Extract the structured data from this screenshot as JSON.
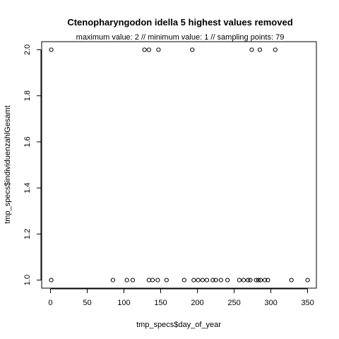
{
  "chart_data": {
    "type": "scatter",
    "title": "Ctenopharyngodon idella  5 highest values removed",
    "subtitle": "maximum value: 2  //  minimum value: 1  // sampling points: 79",
    "xlabel": "tmp_specs$day_of_year",
    "ylabel": "tmp_specs$individuenzahlGesamt",
    "xlim": [
      -12,
      362
    ],
    "ylim": [
      0.965,
      2.035
    ],
    "x_ticks": [
      0,
      50,
      100,
      150,
      200,
      250,
      300,
      350
    ],
    "y_ticks": [
      1.0,
      1.2,
      1.4,
      1.6,
      1.8,
      2.0
    ],
    "x_tick_labels": [
      "0",
      "50",
      "100",
      "150",
      "200",
      "250",
      "300",
      "350"
    ],
    "y_tick_labels": [
      "1.0",
      "1.2",
      "1.4",
      "1.6",
      "1.8",
      "2.0"
    ],
    "grid": false,
    "points": [
      {
        "x": 1,
        "y": 2
      },
      {
        "x": 128,
        "y": 2
      },
      {
        "x": 134,
        "y": 2
      },
      {
        "x": 147,
        "y": 2
      },
      {
        "x": 193,
        "y": 2
      },
      {
        "x": 274,
        "y": 2
      },
      {
        "x": 285,
        "y": 2
      },
      {
        "x": 306,
        "y": 2
      },
      {
        "x": 1,
        "y": 1
      },
      {
        "x": 85,
        "y": 1
      },
      {
        "x": 104,
        "y": 1
      },
      {
        "x": 112,
        "y": 1
      },
      {
        "x": 134,
        "y": 1
      },
      {
        "x": 139,
        "y": 1
      },
      {
        "x": 146,
        "y": 1
      },
      {
        "x": 158,
        "y": 1
      },
      {
        "x": 182,
        "y": 1
      },
      {
        "x": 195,
        "y": 1
      },
      {
        "x": 201,
        "y": 1
      },
      {
        "x": 207,
        "y": 1
      },
      {
        "x": 213,
        "y": 1
      },
      {
        "x": 221,
        "y": 1
      },
      {
        "x": 225,
        "y": 1
      },
      {
        "x": 232,
        "y": 1
      },
      {
        "x": 241,
        "y": 1
      },
      {
        "x": 257,
        "y": 1
      },
      {
        "x": 263,
        "y": 1
      },
      {
        "x": 269,
        "y": 1
      },
      {
        "x": 272,
        "y": 1
      },
      {
        "x": 280,
        "y": 1
      },
      {
        "x": 283,
        "y": 1
      },
      {
        "x": 286,
        "y": 1
      },
      {
        "x": 292,
        "y": 1
      },
      {
        "x": 296,
        "y": 1
      },
      {
        "x": 328,
        "y": 1
      },
      {
        "x": 350,
        "y": 1
      }
    ]
  }
}
